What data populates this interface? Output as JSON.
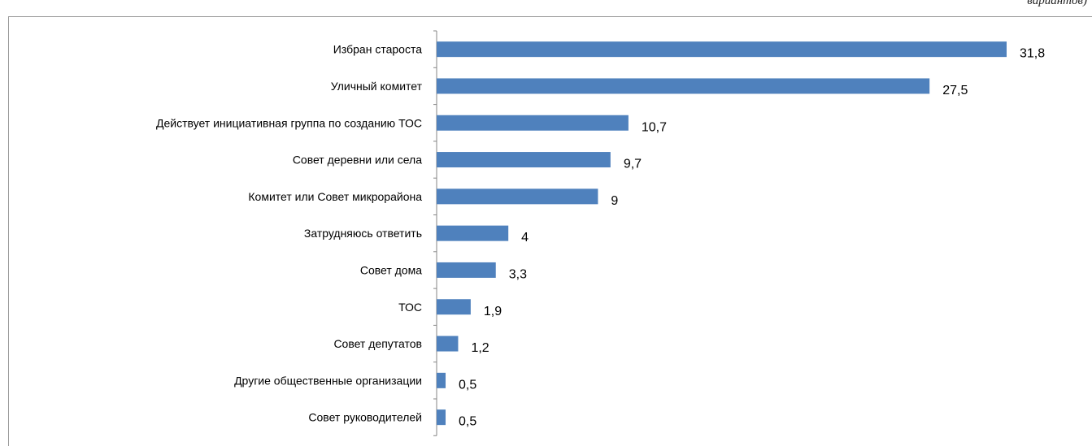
{
  "page": {
    "header_caption": "вариантов)"
  },
  "chart_data": {
    "type": "bar",
    "orientation": "horizontal",
    "categories": [
      "Избран староста",
      "Уличный комитет",
      "Действует инициативная группа по созданию ТОС",
      "Совет деревни или села",
      "Комитет или Совет микрорайона",
      "Затрудняюсь ответить",
      "Совет дома",
      "ТОС",
      "Совет депутатов",
      "Другие общественные организации",
      "Совет руководителей"
    ],
    "values": [
      31.8,
      27.5,
      10.7,
      9.7,
      9,
      4,
      3.3,
      1.9,
      1.2,
      0.5,
      0.5
    ],
    "value_labels": [
      "31,8",
      "27,5",
      "10,7",
      "9,7",
      "9",
      "4",
      "3,3",
      "1,9",
      "1,2",
      "0,5",
      "0,5"
    ],
    "bar_color": "#4f81bd",
    "axis_color": "#868686",
    "xlim": [
      0,
      31.8
    ],
    "grid": false,
    "legend": "none",
    "title": "",
    "xlabel": "",
    "ylabel": ""
  }
}
